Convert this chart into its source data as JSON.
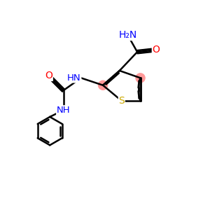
{
  "bg_color": "#ffffff",
  "bond_color": "#000000",
  "O_color": "#ff0000",
  "N_color": "#0000ff",
  "S_color": "#ccaa00",
  "highlight_color": "#ff9999",
  "lw": 1.8,
  "highlight_r": 0.22,
  "font_size": 9.5,
  "xlim": [
    0,
    10
  ],
  "ylim": [
    0,
    10
  ],
  "figsize": [
    3.0,
    3.0
  ],
  "dpi": 100
}
